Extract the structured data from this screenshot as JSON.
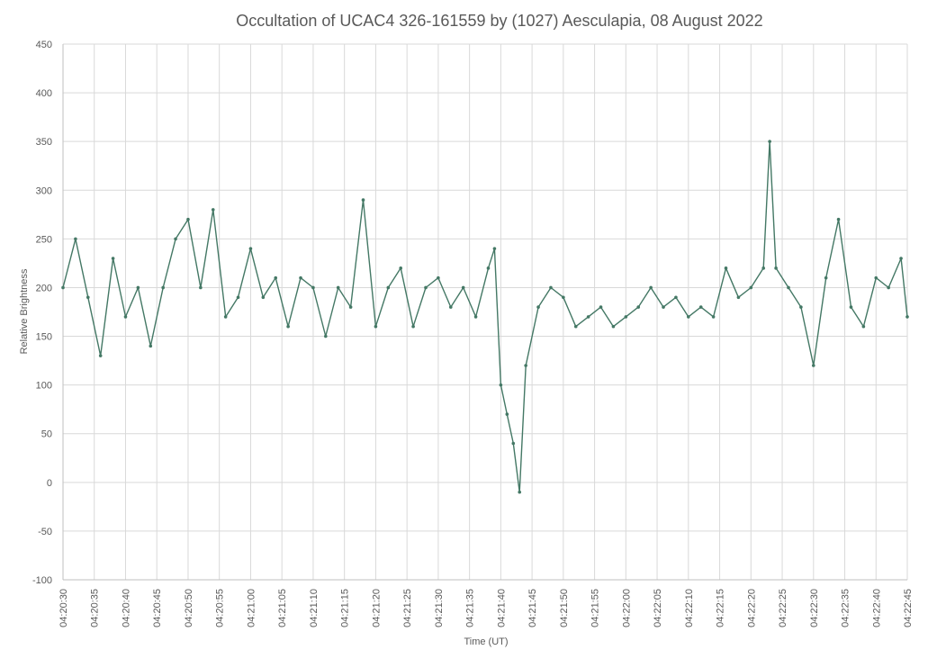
{
  "chart_data": {
    "type": "line",
    "title": "Occultation of UCAC4 326-161559 by (1027) Aesculapia, 08 August 2022",
    "xlabel": "Time (UT)",
    "ylabel": "Relative Brightness",
    "ylim": [
      -100,
      450
    ],
    "y_ticks": [
      -100,
      -50,
      0,
      50,
      100,
      150,
      200,
      250,
      300,
      350,
      400,
      450
    ],
    "x_start": "04:20:30",
    "x_end": "04:22:45",
    "x_ticks": [
      "04:20:30",
      "04:20:35",
      "04:20:40",
      "04:20:45",
      "04:20:50",
      "04:20:55",
      "04:21:00",
      "04:21:05",
      "04:21:10",
      "04:21:15",
      "04:21:20",
      "04:21:25",
      "04:21:30",
      "04:21:35",
      "04:21:40",
      "04:21:45",
      "04:21:50",
      "04:21:55",
      "04:22:00",
      "04:22:05",
      "04:22:10",
      "04:22:15",
      "04:22:20",
      "04:22:25",
      "04:22:30",
      "04:22:35",
      "04:22:40",
      "04:22:45"
    ],
    "grid": "horizontal-and-vertical",
    "legend": "none",
    "series": [
      {
        "color": "#447865",
        "marker": "small-circle",
        "x": [
          "04:20:30",
          "04:20:32",
          "04:20:34",
          "04:20:36",
          "04:20:38",
          "04:20:40",
          "04:20:42",
          "04:20:44",
          "04:20:46",
          "04:20:48",
          "04:20:50",
          "04:20:52",
          "04:20:54",
          "04:20:56",
          "04:20:58",
          "04:21:00",
          "04:21:02",
          "04:21:04",
          "04:21:06",
          "04:21:08",
          "04:21:10",
          "04:21:12",
          "04:21:14",
          "04:21:16",
          "04:21:18",
          "04:21:20",
          "04:21:22",
          "04:21:24",
          "04:21:26",
          "04:21:28",
          "04:21:30",
          "04:21:32",
          "04:21:34",
          "04:21:36",
          "04:21:38",
          "04:21:39",
          "04:21:40",
          "04:21:41",
          "04:21:42",
          "04:21:43",
          "04:21:44",
          "04:21:46",
          "04:21:48",
          "04:21:50",
          "04:21:52",
          "04:21:54",
          "04:21:56",
          "04:21:58",
          "04:22:00",
          "04:22:02",
          "04:22:04",
          "04:22:06",
          "04:22:08",
          "04:22:10",
          "04:22:12",
          "04:22:14",
          "04:22:16",
          "04:22:18",
          "04:22:20",
          "04:22:22",
          "04:22:23",
          "04:22:24",
          "04:22:26",
          "04:22:28",
          "04:22:30",
          "04:22:32",
          "04:22:34",
          "04:22:36",
          "04:22:38",
          "04:22:40",
          "04:22:42",
          "04:22:44",
          "04:22:45"
        ],
        "y": [
          200,
          250,
          190,
          130,
          230,
          170,
          200,
          140,
          200,
          250,
          270,
          200,
          280,
          170,
          190,
          240,
          190,
          210,
          160,
          210,
          200,
          150,
          200,
          180,
          290,
          160,
          200,
          220,
          160,
          200,
          210,
          180,
          200,
          170,
          220,
          240,
          100,
          70,
          40,
          -10,
          120,
          180,
          200,
          190,
          160,
          170,
          180,
          160,
          170,
          180,
          200,
          180,
          190,
          170,
          180,
          170,
          220,
          190,
          200,
          220,
          350,
          220,
          200,
          180,
          120,
          210,
          270,
          180,
          160,
          210,
          200,
          230,
          170
        ]
      }
    ]
  }
}
